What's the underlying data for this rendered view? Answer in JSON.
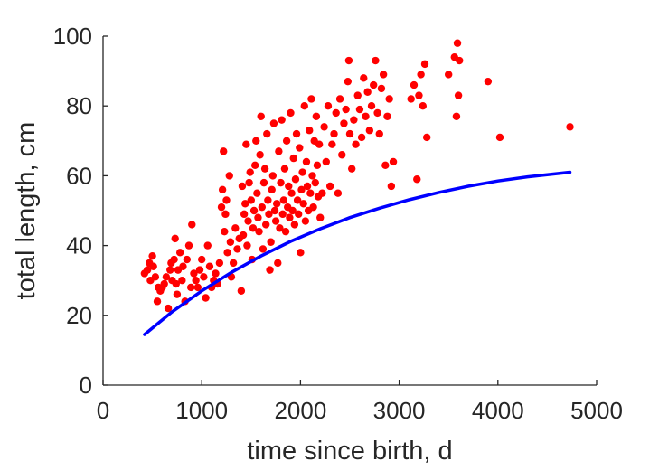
{
  "chart_data": {
    "type": "scatter",
    "title": "",
    "xlabel": "time since birth, d",
    "ylabel": "total length, cm",
    "xlim": [
      0,
      5000
    ],
    "ylim": [
      0,
      100
    ],
    "xticks": [
      0,
      1000,
      2000,
      3000,
      4000,
      5000
    ],
    "yticks": [
      0,
      20,
      40,
      60,
      80,
      100
    ],
    "xtick_labels": [
      "0",
      "1000",
      "2000",
      "3000",
      "4000",
      "5000"
    ],
    "ytick_labels": [
      "0",
      "20",
      "40",
      "60",
      "80",
      "100"
    ],
    "grid": false,
    "colors": {
      "points": "#ff0000",
      "curve": "#0000ff",
      "axis": "#262626"
    },
    "series": [
      {
        "kind": "scatter",
        "points": [
          [
            420,
            32
          ],
          [
            450,
            33
          ],
          [
            470,
            35
          ],
          [
            480,
            30
          ],
          [
            500,
            37
          ],
          [
            510,
            34
          ],
          [
            530,
            31
          ],
          [
            550,
            24
          ],
          [
            560,
            28
          ],
          [
            580,
            27
          ],
          [
            600,
            28
          ],
          [
            620,
            29
          ],
          [
            640,
            31
          ],
          [
            660,
            22
          ],
          [
            680,
            33
          ],
          [
            690,
            35
          ],
          [
            700,
            30
          ],
          [
            720,
            36
          ],
          [
            730,
            42
          ],
          [
            740,
            29
          ],
          [
            750,
            26
          ],
          [
            760,
            33
          ],
          [
            780,
            38
          ],
          [
            800,
            30
          ],
          [
            810,
            34
          ],
          [
            830,
            24
          ],
          [
            850,
            36
          ],
          [
            870,
            40
          ],
          [
            890,
            28
          ],
          [
            900,
            46
          ],
          [
            920,
            32
          ],
          [
            940,
            30
          ],
          [
            960,
            28
          ],
          [
            980,
            33
          ],
          [
            1000,
            36
          ],
          [
            1020,
            31
          ],
          [
            1040,
            25
          ],
          [
            1060,
            40
          ],
          [
            1080,
            34
          ],
          [
            1100,
            28
          ],
          [
            1120,
            30
          ],
          [
            1140,
            32
          ],
          [
            1160,
            29
          ],
          [
            1180,
            35
          ],
          [
            1200,
            51
          ],
          [
            1210,
            56
          ],
          [
            1220,
            67
          ],
          [
            1230,
            44
          ],
          [
            1240,
            49
          ],
          [
            1250,
            53
          ],
          [
            1260,
            38
          ],
          [
            1280,
            60
          ],
          [
            1290,
            41
          ],
          [
            1300,
            31
          ],
          [
            1320,
            35
          ],
          [
            1340,
            45
          ],
          [
            1360,
            39
          ],
          [
            1380,
            42
          ],
          [
            1400,
            27
          ],
          [
            1410,
            57
          ],
          [
            1420,
            43
          ],
          [
            1430,
            49
          ],
          [
            1440,
            52
          ],
          [
            1450,
            69
          ],
          [
            1460,
            40
          ],
          [
            1470,
            47
          ],
          [
            1480,
            58
          ],
          [
            1490,
            61
          ],
          [
            1500,
            53
          ],
          [
            1510,
            36
          ],
          [
            1520,
            45
          ],
          [
            1530,
            50
          ],
          [
            1540,
            63
          ],
          [
            1550,
            70
          ],
          [
            1560,
            55
          ],
          [
            1570,
            48
          ],
          [
            1580,
            44
          ],
          [
            1590,
            66
          ],
          [
            1600,
            77
          ],
          [
            1610,
            51
          ],
          [
            1620,
            39
          ],
          [
            1630,
            58
          ],
          [
            1640,
            62
          ],
          [
            1650,
            46
          ],
          [
            1660,
            72
          ],
          [
            1670,
            53
          ],
          [
            1680,
            49
          ],
          [
            1690,
            33
          ],
          [
            1700,
            41
          ],
          [
            1710,
            56
          ],
          [
            1720,
            60
          ],
          [
            1730,
            75
          ],
          [
            1740,
            50
          ],
          [
            1750,
            47
          ],
          [
            1760,
            52
          ],
          [
            1770,
            35
          ],
          [
            1780,
            67
          ],
          [
            1790,
            45
          ],
          [
            1800,
            58
          ],
          [
            1810,
            76
          ],
          [
            1820,
            49
          ],
          [
            1830,
            53
          ],
          [
            1840,
            62
          ],
          [
            1850,
            44
          ],
          [
            1860,
            70
          ],
          [
            1870,
            51
          ],
          [
            1880,
            57
          ],
          [
            1890,
            48
          ],
          [
            1900,
            78
          ],
          [
            1910,
            55
          ],
          [
            1920,
            50
          ],
          [
            1930,
            65
          ],
          [
            1940,
            46
          ],
          [
            1950,
            59
          ],
          [
            1960,
            72
          ],
          [
            1970,
            53
          ],
          [
            1980,
            49
          ],
          [
            1990,
            68
          ],
          [
            2000,
            38
          ],
          [
            2010,
            56
          ],
          [
            2020,
            61
          ],
          [
            2030,
            52
          ],
          [
            2040,
            80
          ],
          [
            2050,
            47
          ],
          [
            2060,
            64
          ],
          [
            2070,
            57
          ],
          [
            2080,
            50
          ],
          [
            2090,
            73
          ],
          [
            2100,
            55
          ],
          [
            2110,
            82
          ],
          [
            2120,
            60
          ],
          [
            2130,
            51
          ],
          [
            2140,
            70
          ],
          [
            2150,
            58
          ],
          [
            2160,
            77
          ],
          [
            2170,
            63
          ],
          [
            2180,
            54
          ],
          [
            2190,
            69
          ],
          [
            2200,
            48
          ],
          [
            2220,
            55
          ],
          [
            2240,
            74
          ],
          [
            2260,
            64
          ],
          [
            2280,
            80
          ],
          [
            2300,
            57
          ],
          [
            2320,
            69
          ],
          [
            2340,
            72
          ],
          [
            2360,
            78
          ],
          [
            2380,
            55
          ],
          [
            2400,
            82
          ],
          [
            2420,
            66
          ],
          [
            2440,
            75
          ],
          [
            2460,
            79
          ],
          [
            2480,
            87
          ],
          [
            2490,
            93
          ],
          [
            2500,
            72
          ],
          [
            2520,
            62
          ],
          [
            2540,
            76
          ],
          [
            2560,
            69
          ],
          [
            2580,
            83
          ],
          [
            2600,
            79
          ],
          [
            2620,
            71
          ],
          [
            2640,
            88
          ],
          [
            2660,
            77
          ],
          [
            2680,
            84
          ],
          [
            2700,
            73
          ],
          [
            2720,
            80
          ],
          [
            2740,
            86
          ],
          [
            2760,
            93
          ],
          [
            2780,
            78
          ],
          [
            2800,
            72
          ],
          [
            2820,
            85
          ],
          [
            2840,
            89
          ],
          [
            2860,
            63
          ],
          [
            2880,
            77
          ],
          [
            2900,
            82
          ],
          [
            2920,
            57
          ],
          [
            2940,
            64
          ],
          [
            3120,
            82
          ],
          [
            3150,
            86
          ],
          [
            3180,
            59
          ],
          [
            3200,
            83
          ],
          [
            3220,
            89
          ],
          [
            3240,
            80
          ],
          [
            3260,
            92
          ],
          [
            3280,
            71
          ],
          [
            3500,
            89
          ],
          [
            3560,
            94
          ],
          [
            3580,
            77
          ],
          [
            3590,
            98
          ],
          [
            3600,
            83
          ],
          [
            3610,
            93
          ],
          [
            3900,
            87
          ],
          [
            4020,
            71
          ],
          [
            4730,
            74
          ]
        ]
      },
      {
        "kind": "curve",
        "x": [
          420,
          700,
          1000,
          1300,
          1600,
          1900,
          2200,
          2500,
          2800,
          3100,
          3400,
          3700,
          4000,
          4300,
          4730
        ],
        "y": [
          14.5,
          21.0,
          27.0,
          32.3,
          37.0,
          41.2,
          44.8,
          48.0,
          50.7,
          53.1,
          55.2,
          57.0,
          58.5,
          59.7,
          61.0
        ]
      }
    ]
  }
}
